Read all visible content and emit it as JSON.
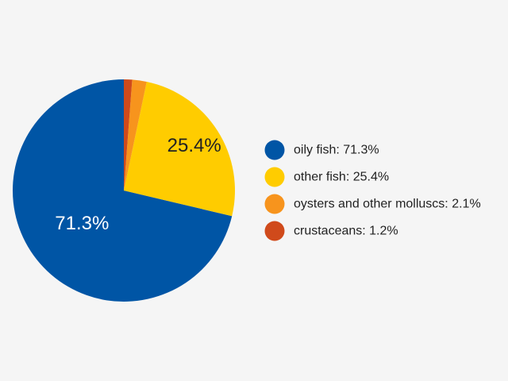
{
  "chart_data": {
    "type": "pie",
    "slices": [
      {
        "name": "oily fish",
        "value": 71.3,
        "color": "#0055a5",
        "label": "71.3%",
        "label_color": "#ffffff"
      },
      {
        "name": "other fish",
        "value": 25.4,
        "color": "#ffcc00",
        "label": "25.4%",
        "label_color": "#222222"
      },
      {
        "name": "oysters and other molluscs",
        "value": 2.1,
        "color": "#f7941d",
        "label": "",
        "label_color": ""
      },
      {
        "name": "crustaceans",
        "value": 1.2,
        "color": "#d04a1b",
        "label": "",
        "label_color": ""
      }
    ],
    "legend": {
      "position": "right",
      "entries": [
        "oily fish: 71.3%",
        "other fish: 25.4%",
        "oysters and other molluscs: 2.1%",
        "crustaceans: 1.2%"
      ]
    },
    "start_angle": "12 o'clock",
    "direction": "counterclockwise"
  }
}
